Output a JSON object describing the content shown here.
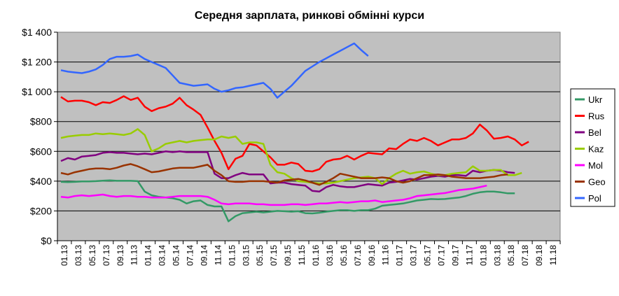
{
  "chart_data": {
    "type": "line",
    "title": "Середня зарплата, ринкові обмінні курси",
    "xlabel": "",
    "ylabel": "",
    "ylim": [
      0,
      1400
    ],
    "y_ticks": [
      "$0",
      "$200",
      "$400",
      "$600",
      "$800",
      "$1 000",
      "$1 200",
      "$1 400"
    ],
    "y_tick_values": [
      0,
      200,
      400,
      600,
      800,
      1000,
      1200,
      1400
    ],
    "x_tick_labels": [
      "01.13",
      "03.13",
      "05.13",
      "07.13",
      "09.13",
      "11.13",
      "01.14",
      "03.14",
      "05.14",
      "07.14",
      "09.14",
      "11.14",
      "01.15",
      "03.15",
      "05.15",
      "07.15",
      "09.15",
      "11.15",
      "01.16",
      "03.16",
      "05.16",
      "07.16",
      "09.16",
      "11.16",
      "01.17",
      "03.17",
      "05.17",
      "07.17",
      "09.17",
      "11.17",
      "01.18",
      "03.18",
      "05.18",
      "07.18",
      "09.18",
      "11.18"
    ],
    "grid": "horizontal",
    "legend_position": "right",
    "series": [
      {
        "name": "Ukr",
        "color": "#339966",
        "values": [
          395,
          393,
          395,
          398,
          398,
          400,
          403,
          405,
          402,
          402,
          402,
          400,
          330,
          305,
          295,
          290,
          285,
          275,
          250,
          265,
          270,
          240,
          230,
          230,
          130,
          165,
          185,
          190,
          195,
          190,
          195,
          200,
          198,
          195,
          198,
          185,
          183,
          188,
          195,
          200,
          205,
          205,
          200,
          205,
          205,
          215,
          235,
          240,
          245,
          250,
          260,
          270,
          275,
          280,
          278,
          280,
          285,
          290,
          300,
          315,
          325,
          330,
          330,
          325,
          318,
          318
        ]
      },
      {
        "name": "Rus",
        "color": "#ff0000",
        "values": [
          965,
          935,
          940,
          940,
          930,
          910,
          930,
          925,
          945,
          970,
          945,
          960,
          900,
          870,
          890,
          900,
          920,
          960,
          910,
          880,
          845,
          760,
          670,
          590,
          480,
          550,
          570,
          650,
          640,
          600,
          560,
          510,
          510,
          525,
          515,
          470,
          465,
          480,
          530,
          545,
          550,
          570,
          545,
          570,
          590,
          585,
          580,
          620,
          615,
          650,
          680,
          670,
          690,
          670,
          640,
          660,
          680,
          680,
          690,
          720,
          780,
          740,
          685,
          690,
          700,
          680,
          640,
          665
        ]
      },
      {
        "name": "Bel",
        "color": "#800080",
        "values": [
          535,
          555,
          545,
          565,
          570,
          575,
          590,
          595,
          590,
          590,
          585,
          580,
          585,
          580,
          590,
          600,
          595,
          600,
          595,
          595,
          595,
          595,
          450,
          420,
          420,
          440,
          455,
          445,
          445,
          445,
          385,
          390,
          390,
          380,
          375,
          370,
          335,
          330,
          360,
          375,
          365,
          360,
          360,
          370,
          380,
          375,
          370,
          390,
          395,
          405,
          415,
          410,
          420,
          430,
          435,
          430,
          440,
          440,
          435,
          470,
          460,
          470,
          475,
          470,
          460,
          455
        ]
      },
      {
        "name": "Kaz",
        "color": "#99cc00",
        "values": [
          690,
          700,
          705,
          710,
          710,
          720,
          715,
          720,
          715,
          710,
          720,
          750,
          710,
          600,
          620,
          650,
          660,
          670,
          660,
          670,
          675,
          680,
          680,
          700,
          690,
          700,
          650,
          660,
          660,
          650,
          510,
          460,
          450,
          420,
          400,
          395,
          390,
          385,
          385,
          390,
          400,
          410,
          420,
          425,
          430,
          420,
          380,
          420,
          450,
          470,
          450,
          460,
          465,
          450,
          440,
          440,
          450,
          455,
          460,
          500,
          470,
          470,
          475,
          475,
          440,
          440,
          455
        ]
      },
      {
        "name": "Mol",
        "color": "#ff00ff",
        "values": [
          295,
          290,
          300,
          305,
          300,
          305,
          310,
          300,
          295,
          300,
          300,
          295,
          295,
          290,
          290,
          290,
          295,
          300,
          300,
          300,
          300,
          295,
          275,
          250,
          245,
          250,
          250,
          250,
          245,
          245,
          240,
          240,
          240,
          245,
          245,
          240,
          245,
          250,
          250,
          255,
          260,
          255,
          260,
          265,
          265,
          270,
          260,
          265,
          270,
          275,
          285,
          300,
          305,
          310,
          315,
          320,
          330,
          340,
          345,
          350,
          360,
          370
        ]
      },
      {
        "name": "Geo",
        "color": "#993300",
        "values": [
          455,
          445,
          460,
          470,
          480,
          485,
          485,
          480,
          490,
          505,
          515,
          500,
          480,
          460,
          465,
          475,
          485,
          490,
          490,
          490,
          500,
          510,
          470,
          440,
          400,
          395,
          395,
          400,
          400,
          400,
          395,
          390,
          405,
          410,
          415,
          405,
          390,
          375,
          395,
          420,
          450,
          440,
          430,
          420,
          420,
          420,
          425,
          420,
          400,
          390,
          400,
          420,
          440,
          440,
          445,
          440,
          430,
          425,
          420,
          420,
          420,
          425,
          430,
          440,
          445
        ]
      },
      {
        "name": "Pol",
        "color": "#3366ff",
        "values": [
          1145,
          1135,
          1130,
          1125,
          1135,
          1150,
          1180,
          1220,
          1235,
          1235,
          1240,
          1250,
          1220,
          1200,
          1180,
          1160,
          1110,
          1060,
          1050,
          1040,
          1045,
          1050,
          1020,
          1000,
          1010,
          1025,
          1030,
          1040,
          1050,
          1060,
          1020,
          960,
          1000,
          1040,
          1090,
          1140,
          1170,
          1200,
          1225,
          1250,
          1275,
          1300,
          1325,
          1280,
          1240
        ]
      }
    ]
  }
}
